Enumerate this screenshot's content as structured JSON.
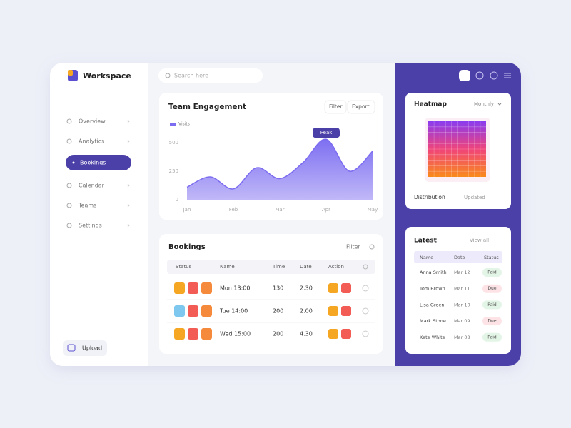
{
  "brand": "Workspace",
  "search": "Search here",
  "nav": [
    "Overview",
    "Analytics",
    "Bookings",
    "Calendar",
    "Teams",
    "Settings"
  ],
  "upload": "Upload",
  "chart_data": {
    "type": "area",
    "title": "Team Engagement",
    "buttons": [
      "Filter",
      "Export"
    ],
    "series": [
      {
        "name": "Visits",
        "color": "#7b6cf0",
        "values": [
          110,
          200,
          95,
          280,
          185,
          325,
          530,
          250,
          425
        ]
      }
    ],
    "categories": [
      "Jan",
      null,
      "Feb",
      null,
      "Mar",
      null,
      "Apr",
      null,
      "May"
    ],
    "ylim": [
      0,
      600
    ],
    "yticks": [
      0,
      250,
      500
    ],
    "grid": false,
    "annotation": "Peak"
  },
  "bookings": {
    "title": "Bookings",
    "filter": "Filter",
    "columns": [
      "Status",
      "Name",
      "Time",
      "Date",
      "Action"
    ],
    "rows": [
      [
        "Mon 13:00",
        "130",
        "2.30"
      ],
      [
        "Tue 14:00",
        "200",
        "2.00"
      ],
      [
        "Wed 15:00",
        "200",
        "4.30"
      ]
    ]
  },
  "heatmap": {
    "title": "Heatmap",
    "period": "Monthly",
    "footer": "Distribution",
    "updated": "Updated"
  },
  "latest": {
    "title": "Latest",
    "link": "View all",
    "columns": [
      "Name",
      "Date",
      "Status"
    ],
    "rows": [
      {
        "name": "Anna Smith",
        "date": "Mar 12",
        "status": "Paid",
        "color": "#e3f5e6"
      },
      {
        "name": "Tom Brown",
        "date": "Mar 11",
        "status": "Due",
        "color": "#fde3e6"
      },
      {
        "name": "Lisa Green",
        "date": "Mar 10",
        "status": "Paid",
        "color": "#e3f5e6"
      },
      {
        "name": "Mark Stone",
        "date": "Mar 09",
        "status": "Due",
        "color": "#fde3e6"
      },
      {
        "name": "Kate White",
        "date": "Mar 08",
        "status": "Paid",
        "color": "#e3f5e6"
      }
    ]
  }
}
